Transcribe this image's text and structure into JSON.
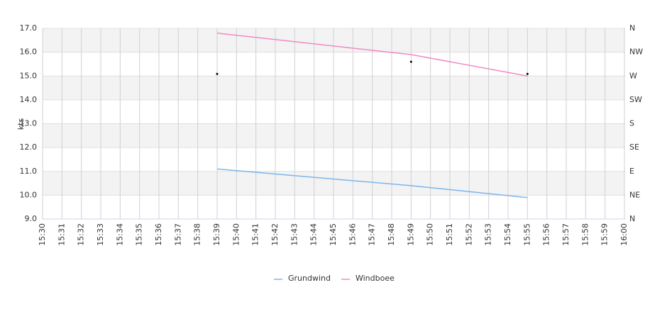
{
  "chart_data": {
    "type": "line",
    "y_label": "kts",
    "xlim": [
      "15:30",
      "16:00"
    ],
    "xticks": [
      "15:30",
      "15:31",
      "15:32",
      "15:33",
      "15:34",
      "15:35",
      "15:36",
      "15:37",
      "15:38",
      "15:39",
      "15:40",
      "15:41",
      "15:42",
      "15:43",
      "15:44",
      "15:45",
      "15:46",
      "15:47",
      "15:48",
      "15:49",
      "15:50",
      "15:51",
      "15:52",
      "15:53",
      "15:54",
      "15:55",
      "15:56",
      "15:57",
      "15:58",
      "15:59",
      "16:00"
    ],
    "ylim": [
      9,
      17
    ],
    "yticks": [
      {
        "value": 9,
        "label": "9.0"
      },
      {
        "value": 10,
        "label": "10.0"
      },
      {
        "value": 11,
        "label": "11.0"
      },
      {
        "value": 12,
        "label": "12.0"
      },
      {
        "value": 13,
        "label": "13.0"
      },
      {
        "value": 14,
        "label": "14.0"
      },
      {
        "value": 15,
        "label": "15.0"
      },
      {
        "value": 16,
        "label": "16.0"
      },
      {
        "value": 17,
        "label": "17.0"
      }
    ],
    "y2lim": [
      0,
      360
    ],
    "y2ticks": [
      {
        "value": 0,
        "label": "N"
      },
      {
        "value": 45,
        "label": "NE"
      },
      {
        "value": 90,
        "label": "E"
      },
      {
        "value": 135,
        "label": "SE"
      },
      {
        "value": 180,
        "label": "S"
      },
      {
        "value": 225,
        "label": "SW"
      },
      {
        "value": 270,
        "label": "W"
      },
      {
        "value": 315,
        "label": "NW"
      },
      {
        "value": 360,
        "label": "N"
      }
    ],
    "x": [
      "15:39",
      "15:49",
      "15:55"
    ],
    "series": [
      {
        "name": "Grundwind",
        "color": "#7cb5ec",
        "values": [
          11.1,
          10.4,
          9.9
        ]
      },
      {
        "name": "Windboee",
        "color": "#f08ac0",
        "values": [
          16.8,
          15.9,
          15.0
        ]
      },
      {
        "type": "scatter",
        "axis": "y2",
        "color": "#000000",
        "values": [
          274,
          297,
          274
        ]
      }
    ],
    "grid": true,
    "legend": "bottom"
  }
}
